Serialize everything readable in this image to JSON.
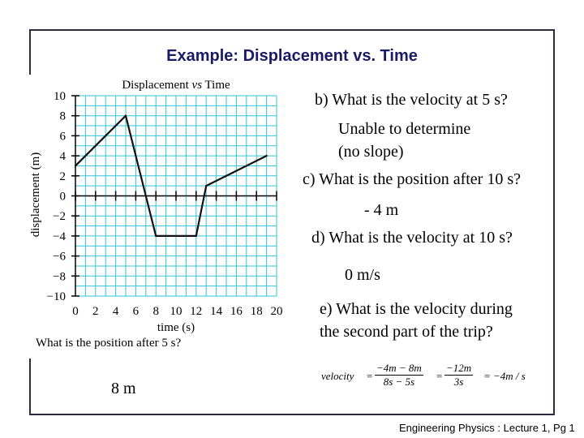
{
  "slide": {
    "title": "Example: Displacement vs. Time",
    "footer": "Engineering Physics : Lecture 1, Pg 1"
  },
  "chart_data": {
    "type": "line",
    "title_prefix": "Displacement",
    "title_vs": "vs",
    "title_suffix": "Time",
    "xlabel": "time (s)",
    "ylabel": "displacement (m)",
    "xlim": [
      0,
      20
    ],
    "ylim": [
      -10,
      10
    ],
    "x_ticks": [
      "0",
      "2",
      "4",
      "6",
      "8",
      "10",
      "12",
      "14",
      "16",
      "18",
      "20"
    ],
    "y_ticks": [
      "10",
      "8",
      "6",
      "4",
      "2",
      "0",
      "−2",
      "−4",
      "−6",
      "−8",
      "−10"
    ],
    "grid": true,
    "line_color": "#111111",
    "grid_color": "#33c6d6",
    "series": [
      {
        "x": [
          0,
          5,
          8,
          12,
          13,
          19
        ],
        "y": [
          3,
          8,
          -4,
          -4,
          1,
          4
        ]
      }
    ]
  },
  "caption": "What is the position after 5 s?",
  "answer_a": "8 m",
  "questions": {
    "b": "b) What is the velocity at 5 s?",
    "b_ans1": "Unable to determine",
    "b_ans2": "(no slope)",
    "c": "c) What is the position after 10 s?",
    "c_ans": "- 4 m",
    "d": "d) What is the velocity at 10 s?",
    "d_ans": "0 m/s",
    "e1": "e) What is the velocity during",
    "e2": "the second part of the trip?"
  },
  "equation": {
    "lhs": "velocity",
    "eq1": "=",
    "num1": "−4m − 8m",
    "den1": "8s − 5s",
    "eq2": "=",
    "num2": "−12m",
    "den2": "3s",
    "result": "= −4m / s"
  }
}
